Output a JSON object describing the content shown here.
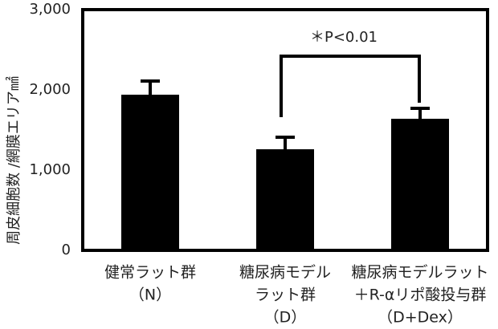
{
  "chart_data": {
    "type": "bar",
    "y_label": "周皮細胞数 /網膜エリア㎟",
    "categories": [
      [
        "健常ラット群",
        "（N）"
      ],
      [
        "糖尿病モデル",
        "ラット群",
        "（D）"
      ],
      [
        "糖尿病モデルラット",
        "＋R-αリポ酸投与群",
        "（D+Dex）"
      ]
    ],
    "values": [
      1940,
      1260,
      1640
    ],
    "errors": [
      170,
      150,
      130
    ],
    "color": "#000000",
    "ylim": [
      0,
      3000
    ],
    "yticks": [
      0,
      {
        "value": 1000,
        "label": "1,000"
      },
      {
        "value": 2000,
        "label": "2,000"
      },
      {
        "value": 3000,
        "label": "3,000"
      }
    ],
    "annotation": "＊P<0.01"
  }
}
